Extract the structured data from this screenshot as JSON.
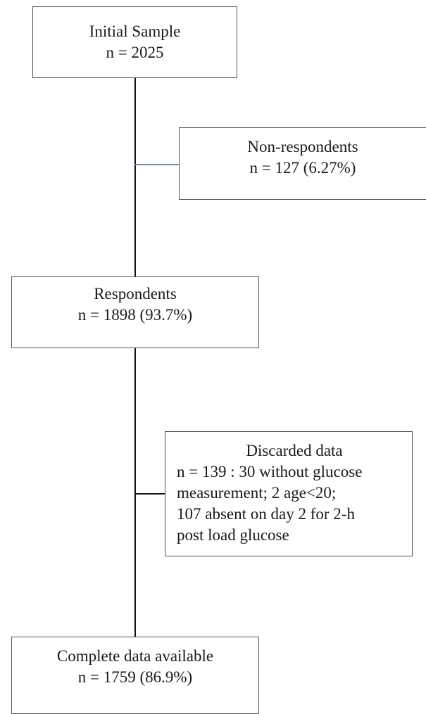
{
  "nodes": {
    "initial": {
      "title": "Initial Sample",
      "count": "n = 2025"
    },
    "non_respondents": {
      "title": "Non-respondents",
      "count": "n = 127  (6.27%)"
    },
    "respondents": {
      "title": "Respondents",
      "count": "n = 1898  (93.7%)"
    },
    "discarded": {
      "title": "Discarded data",
      "lines": [
        "n = 139 : 30 without glucose",
        "measurement;  2 age<20;",
        "107 absent on day 2  for 2-h",
        "post load glucose"
      ]
    },
    "complete": {
      "title": "Complete data available",
      "count": "n = 1759 (86.9%)"
    }
  },
  "colors": {
    "line": "#111111",
    "branch_upper": "#6b8fb5",
    "border": "#555555"
  }
}
